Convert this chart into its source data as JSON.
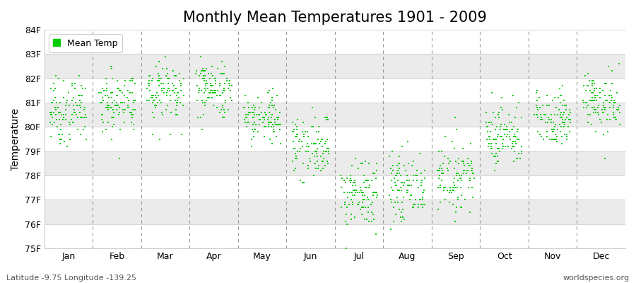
{
  "title": "Monthly Mean Temperatures 1901 - 2009",
  "ylabel": "Temperature",
  "xlabel_labels": [
    "Jan",
    "Feb",
    "Mar",
    "Apr",
    "May",
    "Jun",
    "Jul",
    "Aug",
    "Sep",
    "Oct",
    "Nov",
    "Dec"
  ],
  "ylim": [
    75,
    84
  ],
  "yticks": [
    75,
    76,
    77,
    78,
    79,
    80,
    81,
    82,
    83,
    84
  ],
  "ytick_labels": [
    "75F",
    "76F",
    "77F",
    "78F",
    "79F",
    "80F",
    "81F",
    "82F",
    "83F",
    "84F"
  ],
  "n_years": 109,
  "monthly_means": [
    80.65,
    81.0,
    81.5,
    81.55,
    80.4,
    79.2,
    77.2,
    77.5,
    78.0,
    79.65,
    80.4,
    81.0
  ],
  "monthly_stds": [
    0.65,
    0.65,
    0.65,
    0.6,
    0.55,
    0.65,
    0.7,
    0.7,
    0.65,
    0.65,
    0.55,
    0.6
  ],
  "dot_color": "#00cc00",
  "dot_size": 3,
  "background_color": "#ffffff",
  "band_color_odd": "#ebebeb",
  "band_color_even": "#ffffff",
  "legend_label": "Mean Temp",
  "legend_color": "#00cc00",
  "dashed_line_color": "#999999",
  "title_fontsize": 15,
  "axis_fontsize": 10,
  "tick_fontsize": 9,
  "footer_left": "Latitude -9.75 Longitude -139.25",
  "footer_right": "worldspecies.org",
  "footer_fontsize": 8
}
